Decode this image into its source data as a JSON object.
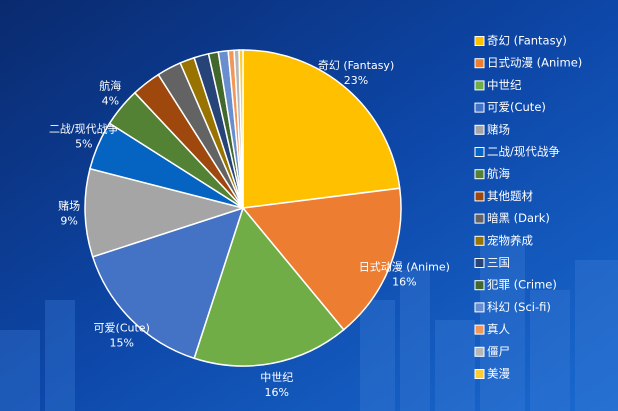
{
  "chart_data": {
    "type": "pie",
    "categories": [
      "奇幻 (Fantasy)",
      "日式动漫 (Anime)",
      "中世纪",
      "可爱(Cute)",
      "赌场",
      "二战/现代战争",
      "航海",
      "其他题材",
      "暗黑 (Dark)",
      "宠物养成",
      "三国",
      "犯罪 (Crime)",
      "科幻 (Sci-fi)",
      "真人",
      "僵尸",
      "美漫"
    ],
    "values": [
      23,
      16,
      16,
      15,
      9,
      5,
      4,
      3,
      2.5,
      1.5,
      1.5,
      1,
      1,
      0.6,
      0.5,
      0.4
    ],
    "value_labels": [
      "23%",
      "16%",
      "16%",
      "15%",
      "9%",
      "5%",
      "4%",
      null,
      null,
      null,
      null,
      null,
      null,
      null,
      null,
      null
    ],
    "colors": [
      "#ffc000",
      "#ed7d31",
      "#70ad47",
      "#4472c4",
      "#a5a5a5",
      "#0563c1",
      "#548235",
      "#9e480e",
      "#636363",
      "#997300",
      "#264478",
      "#43682b",
      "#698ed0",
      "#f1975a",
      "#b7b7b7",
      "#ffcd33"
    ],
    "legend": "right"
  }
}
